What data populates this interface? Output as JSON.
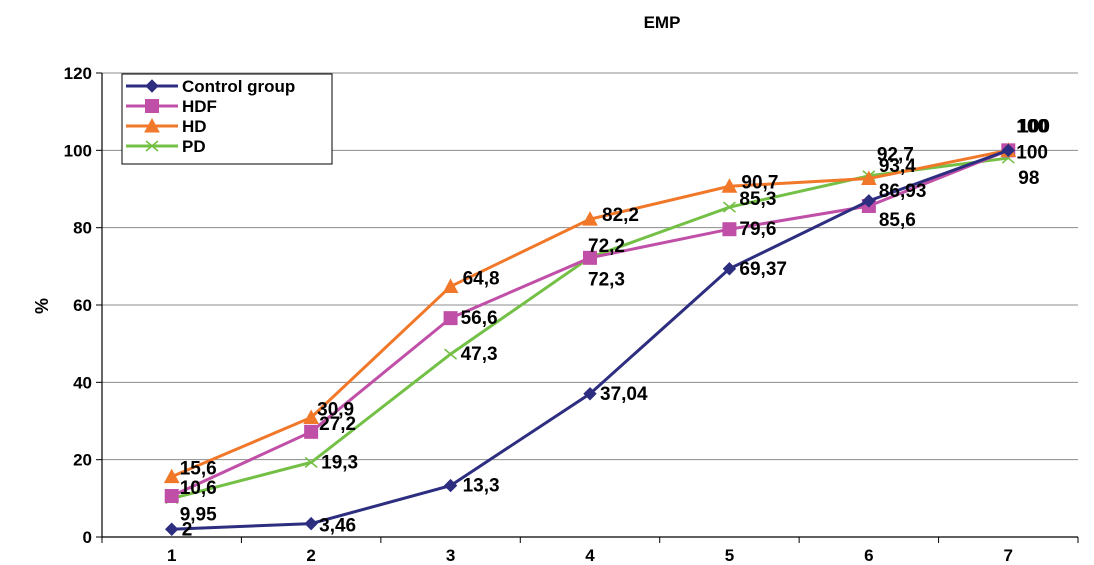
{
  "chart_data": {
    "type": "line",
    "title": "EMP",
    "xlabel": "",
    "ylabel": "%",
    "ylim": [
      0,
      120
    ],
    "yticks": [
      0,
      20,
      40,
      60,
      80,
      100,
      120
    ],
    "categories": [
      "1",
      "2",
      "3",
      "4",
      "5",
      "6",
      "7"
    ],
    "grid": "horizontal",
    "legend_position": "top-left",
    "series": [
      {
        "name": "Control group",
        "color": "#2e2e80",
        "marker": "diamond",
        "values": [
          2,
          3.46,
          13.3,
          37.04,
          69.37,
          86.93,
          100
        ],
        "labels": [
          "2",
          "3,46",
          "13,3",
          "37,04",
          "69,37",
          "86,93",
          "100"
        ]
      },
      {
        "name": "HDF",
        "color": "#c04fa8",
        "marker": "square",
        "values": [
          10.6,
          27.2,
          56.6,
          72.2,
          79.6,
          85.6,
          100
        ],
        "labels": [
          "10,6",
          "27,2",
          "56,6",
          "72,2",
          "79,6",
          "85,6",
          "100"
        ]
      },
      {
        "name": "HD",
        "color": "#f07828",
        "marker": "triangle",
        "values": [
          15.6,
          30.9,
          64.8,
          82.2,
          90.7,
          92.7,
          100
        ],
        "labels": [
          "15,6",
          "30,9",
          "64,8",
          "82,2",
          "90,7",
          "92,7",
          "100"
        ]
      },
      {
        "name": "PD",
        "color": "#74c046",
        "marker": "x",
        "values": [
          9.95,
          19.3,
          47.3,
          72.3,
          85.3,
          93.4,
          98
        ],
        "labels": [
          "9,95",
          "19,3",
          "47,3",
          "72,3",
          "85,3",
          "93,4",
          "98"
        ]
      }
    ]
  }
}
